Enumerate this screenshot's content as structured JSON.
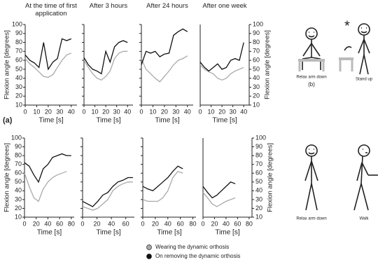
{
  "panel_a": "(a)",
  "panel_b": "(b)",
  "figures": {
    "top": [
      "Relax arm down",
      "Stand up"
    ],
    "bottom": [
      "Relax arm down",
      "Walk"
    ]
  },
  "chart_data": [
    {
      "type": "line",
      "title": "At the time of first application",
      "xlabel": "Time [s]",
      "ylabel": "Flexion angle [degrees]",
      "yaxis": "left",
      "xlim": [
        0,
        45
      ],
      "xticks": [
        0,
        10,
        20,
        30,
        40
      ],
      "ylim": [
        10,
        100
      ],
      "yticks": [
        10,
        20,
        30,
        40,
        50,
        60,
        70,
        80,
        90,
        100
      ],
      "x": [
        0,
        4,
        8,
        12,
        16,
        20,
        24,
        28,
        32,
        36,
        40
      ],
      "series": [
        {
          "name": "Wearing the dynamic orthosis",
          "color": "#aaaaaa",
          "values": [
            62,
            56,
            52,
            47,
            42,
            41,
            44,
            52,
            60,
            66,
            68
          ]
        },
        {
          "name": "On removing the dynamic orthosis",
          "color": "#111111",
          "values": [
            66,
            60,
            57,
            52,
            80,
            50,
            58,
            62,
            84,
            82,
            84
          ]
        }
      ]
    },
    {
      "type": "line",
      "title": "After 3 hours",
      "xlabel": "Time [s]",
      "yaxis": "none",
      "xlim": [
        0,
        45
      ],
      "xticks": [
        0,
        10,
        20,
        30,
        40
      ],
      "ylim": [
        10,
        100
      ],
      "yticks": [
        10,
        20,
        30,
        40,
        50,
        60,
        70,
        80,
        90,
        100
      ],
      "x": [
        0,
        4,
        8,
        12,
        16,
        20,
        24,
        28,
        32,
        36,
        40
      ],
      "series": [
        {
          "color": "#aaaaaa",
          "values": [
            60,
            52,
            45,
            40,
            38,
            42,
            48,
            62,
            68,
            70,
            70
          ]
        },
        {
          "color": "#111111",
          "values": [
            63,
            55,
            50,
            48,
            45,
            70,
            58,
            75,
            80,
            82,
            80
          ]
        }
      ]
    },
    {
      "type": "line",
      "title": "After 24 hours",
      "xlabel": "Time [s]",
      "yaxis": "none",
      "xlim": [
        0,
        45
      ],
      "xticks": [
        0,
        10,
        20,
        30,
        40
      ],
      "ylim": [
        10,
        100
      ],
      "yticks": [
        10,
        20,
        30,
        40,
        50,
        60,
        70,
        80,
        90,
        100
      ],
      "x": [
        0,
        4,
        8,
        12,
        16,
        20,
        24,
        28,
        32,
        36,
        40
      ],
      "series": [
        {
          "color": "#aaaaaa",
          "values": [
            62,
            50,
            45,
            40,
            36,
            42,
            48,
            55,
            60,
            62,
            65
          ]
        },
        {
          "color": "#111111",
          "values": [
            55,
            70,
            68,
            70,
            64,
            67,
            68,
            88,
            92,
            95,
            92
          ]
        }
      ]
    },
    {
      "type": "line",
      "title": "After one week",
      "xlabel": "Time [s]",
      "ylabel": "Flexion angle [degrees]",
      "yaxis": "right",
      "xlim": [
        0,
        45
      ],
      "xticks": [
        0,
        10,
        20,
        30,
        40
      ],
      "ylim": [
        10,
        100
      ],
      "yticks": [
        10,
        20,
        30,
        40,
        50,
        60,
        70,
        80,
        90,
        100
      ],
      "x": [
        0,
        4,
        8,
        12,
        16,
        20,
        24,
        28,
        32,
        36,
        40
      ],
      "series": [
        {
          "color": "#aaaaaa",
          "values": [
            55,
            50,
            47,
            45,
            40,
            38,
            40,
            45,
            48,
            50,
            52
          ]
        },
        {
          "color": "#111111",
          "values": [
            58,
            52,
            48,
            52,
            56,
            50,
            52,
            60,
            62,
            60,
            80
          ]
        }
      ]
    },
    {
      "type": "line",
      "xlabel": "Time [s]",
      "ylabel": "Flexion angle [degrees]",
      "yaxis": "left",
      "xlim": [
        0,
        85
      ],
      "xticks": [
        0,
        20,
        40,
        60,
        80
      ],
      "ylim": [
        10,
        100
      ],
      "yticks": [
        10,
        20,
        30,
        40,
        50,
        60,
        70,
        80,
        90,
        100
      ],
      "x": [
        0,
        8,
        16,
        24,
        32,
        40,
        48,
        56,
        64,
        72,
        80
      ],
      "series": [
        {
          "color": "#aaaaaa",
          "values": [
            60,
            45,
            32,
            28,
            42,
            50,
            55,
            58,
            60,
            62,
            null
          ]
        },
        {
          "color": "#111111",
          "values": [
            72,
            68,
            58,
            50,
            65,
            70,
            78,
            80,
            82,
            80,
            80
          ]
        }
      ]
    },
    {
      "type": "line",
      "xlabel": "Time [s]",
      "yaxis": "none",
      "xlim": [
        0,
        72
      ],
      "xticks": [
        0,
        20,
        40,
        60
      ],
      "ylim": [
        10,
        100
      ],
      "yticks": [
        10,
        20,
        30,
        40,
        50,
        60,
        70,
        80,
        90,
        100
      ],
      "x": [
        0,
        7,
        14,
        21,
        28,
        35,
        42,
        49,
        56,
        63,
        70
      ],
      "series": [
        {
          "color": "#aaaaaa",
          "values": [
            22,
            20,
            18,
            20,
            25,
            30,
            40,
            45,
            48,
            50,
            50
          ]
        },
        {
          "color": "#111111",
          "values": [
            28,
            25,
            22,
            28,
            35,
            38,
            45,
            50,
            52,
            55,
            55
          ]
        }
      ]
    },
    {
      "type": "line",
      "xlabel": "Time [s]",
      "yaxis": "none",
      "xlim": [
        0,
        85
      ],
      "xticks": [
        0,
        20,
        40,
        60,
        80
      ],
      "ylim": [
        10,
        100
      ],
      "yticks": [
        10,
        20,
        30,
        40,
        50,
        60,
        70,
        80,
        90,
        100
      ],
      "x": [
        0,
        8,
        16,
        24,
        32,
        40,
        48,
        56,
        64,
        72,
        80
      ],
      "series": [
        {
          "color": "#aaaaaa",
          "values": [
            30,
            28,
            28,
            28,
            32,
            40,
            55,
            62,
            60,
            null,
            null
          ]
        },
        {
          "color": "#111111",
          "values": [
            45,
            42,
            40,
            45,
            50,
            55,
            62,
            68,
            65,
            null,
            null
          ]
        }
      ]
    },
    {
      "type": "line",
      "xlabel": "Time [s]",
      "ylabel": "Flexion angle [degrees]",
      "yaxis": "right",
      "xlim": [
        0,
        85
      ],
      "xticks": [
        0,
        20,
        40,
        60,
        80
      ],
      "ylim": [
        10,
        100
      ],
      "yticks": [
        10,
        20,
        30,
        40,
        50,
        60,
        70,
        80,
        90,
        100
      ],
      "x": [
        0,
        8,
        16,
        24,
        32,
        40,
        48,
        56,
        64,
        72,
        80
      ],
      "series": [
        {
          "color": "#aaaaaa",
          "values": [
            38,
            32,
            25,
            22,
            25,
            28,
            30,
            32,
            null,
            null,
            null
          ]
        },
        {
          "color": "#111111",
          "values": [
            45,
            38,
            32,
            35,
            40,
            45,
            50,
            48,
            null,
            null,
            null
          ]
        }
      ]
    }
  ]
}
